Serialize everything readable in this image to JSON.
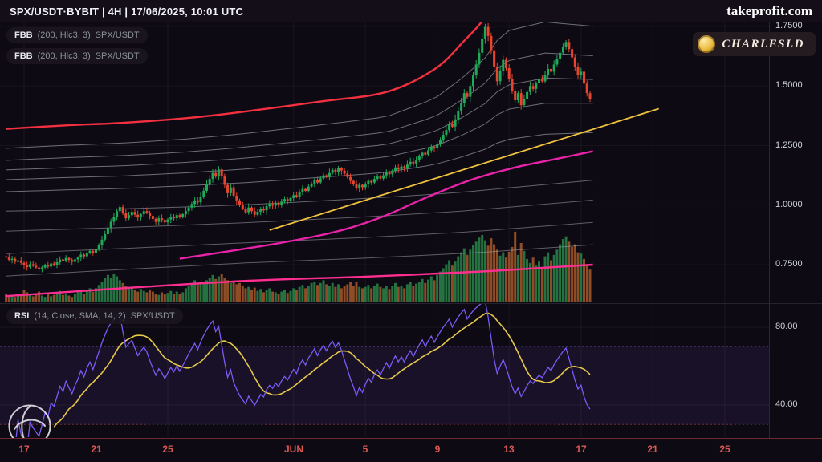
{
  "header": {
    "symbol_line": "SPX/USDT·BYBIT | 4H | 17/06/2025, 10:01 UTC",
    "brand": "takeprofit.com"
  },
  "badges": {
    "charlesld": "CHARLESLD"
  },
  "indicators": {
    "fbb": [
      {
        "name": "FBB",
        "params": "(200, Hlc3, 3)",
        "symbol": "SPX/USDT"
      },
      {
        "name": "FBB",
        "params": "(200, Hlc3, 3)",
        "symbol": "SPX/USDT"
      }
    ],
    "rsi": {
      "name": "RSI",
      "params": "(14, Close, SMA, 14, 2)",
      "symbol": "SPX/USDT"
    }
  },
  "price_axis": {
    "labels": [
      "1.7500",
      "1.5000",
      "1.2500",
      "1.0000",
      "0.7500"
    ],
    "values": [
      1.75,
      1.5,
      1.25,
      1.0,
      0.75
    ]
  },
  "rsi_axis": {
    "labels": [
      "80.00",
      "40.00"
    ],
    "values": [
      80,
      40
    ]
  },
  "time_axis": {
    "ticks": [
      {
        "label": "17",
        "i": 6
      },
      {
        "label": "21",
        "i": 30
      },
      {
        "label": "25",
        "i": 54
      },
      {
        "label": "JUN",
        "i": 96
      },
      {
        "label": "5",
        "i": 120
      },
      {
        "label": "9",
        "i": 144
      },
      {
        "label": "13",
        "i": 168
      },
      {
        "label": "17",
        "i": 192
      },
      {
        "label": "21",
        "i": 216
      },
      {
        "label": "25",
        "i": 240
      }
    ]
  },
  "chart_data": {
    "type": "candlestick",
    "symbol": "SPX/USDT",
    "exchange": "BYBIT",
    "interval": "4H",
    "timestamp": "17/06/2025, 10:01 UTC",
    "start_date": "2025-05-16",
    "candles_per_day": 6,
    "visible_price_range": [
      0.59,
      1.8
    ],
    "colors": {
      "up": "#1faa59",
      "down": "#e8442e",
      "vol_up": "rgba(46,150,82,0.75)",
      "vol_down": "rgba(186,100,46,0.75)"
    },
    "closes": [
      0.78,
      0.77,
      0.775,
      0.762,
      0.768,
      0.758,
      0.748,
      0.74,
      0.752,
      0.745,
      0.738,
      0.73,
      0.738,
      0.748,
      0.742,
      0.755,
      0.75,
      0.76,
      0.772,
      0.765,
      0.778,
      0.77,
      0.762,
      0.772,
      0.78,
      0.792,
      0.785,
      0.798,
      0.808,
      0.8,
      0.815,
      0.832,
      0.855,
      0.878,
      0.905,
      0.93,
      0.95,
      0.975,
      0.992,
      0.968,
      0.945,
      0.958,
      0.972,
      0.96,
      0.948,
      0.962,
      0.975,
      0.968,
      0.955,
      0.942,
      0.93,
      0.945,
      0.938,
      0.928,
      0.94,
      0.952,
      0.945,
      0.958,
      0.95,
      0.962,
      0.975,
      0.99,
      1.005,
      1.02,
      1.012,
      1.035,
      1.06,
      1.085,
      1.11,
      1.135,
      1.12,
      1.15,
      1.12,
      1.085,
      1.05,
      1.075,
      1.04,
      1.02,
      1.0,
      0.985,
      0.97,
      0.99,
      0.975,
      0.96,
      0.972,
      0.985,
      0.978,
      0.995,
      1.005,
      0.998,
      1.01,
      1.002,
      1.015,
      1.025,
      1.018,
      1.03,
      1.042,
      1.035,
      1.055,
      1.068,
      1.06,
      1.078,
      1.09,
      1.105,
      1.095,
      1.112,
      1.125,
      1.118,
      1.135,
      1.148,
      1.14,
      1.155,
      1.145,
      1.132,
      1.118,
      1.102,
      1.088,
      1.07,
      1.085,
      1.075,
      1.09,
      1.102,
      1.095,
      1.11,
      1.12,
      1.112,
      1.125,
      1.138,
      1.13,
      1.145,
      1.158,
      1.15,
      1.162,
      1.155,
      1.17,
      1.182,
      1.175,
      1.19,
      1.205,
      1.22,
      1.212,
      1.23,
      1.245,
      1.238,
      1.255,
      1.275,
      1.295,
      1.315,
      1.34,
      1.33,
      1.36,
      1.395,
      1.43,
      1.47,
      1.455,
      1.5,
      1.545,
      1.59,
      1.64,
      1.7,
      1.748,
      1.71,
      1.65,
      1.58,
      1.52,
      1.565,
      1.61,
      1.575,
      1.53,
      1.48,
      1.44,
      1.47,
      1.42,
      1.445,
      1.475,
      1.5,
      1.488,
      1.512,
      1.53,
      1.52,
      1.545,
      1.572,
      1.56,
      1.59,
      1.615,
      1.64,
      1.665,
      1.685,
      1.655,
      1.62,
      1.58,
      1.545,
      1.56,
      1.51,
      1.47,
      1.445
    ],
    "volumes": [
      1.2,
      0.8,
      1.0,
      0.7,
      0.9,
      1.1,
      1.8,
      1.4,
      1.0,
      0.8,
      1.2,
      1.5,
      0.9,
      0.7,
      1.1,
      0.8,
      1.0,
      1.3,
      1.6,
      1.0,
      1.2,
      0.9,
      0.7,
      1.1,
      1.4,
      1.8,
      1.2,
      1.6,
      2.0,
      1.5,
      2.0,
      2.5,
      3.0,
      3.5,
      4.0,
      3.6,
      4.2,
      3.8,
      3.2,
      2.8,
      2.4,
      2.2,
      2.2,
      1.8,
      1.5,
      1.9,
      1.6,
      1.4,
      1.8,
      1.5,
      1.2,
      1.0,
      1.4,
      1.1,
      1.3,
      1.6,
      1.2,
      1.5,
      1.1,
      1.4,
      2.0,
      2.4,
      2.8,
      3.2,
      2.6,
      3.0,
      2.8,
      3.2,
      3.6,
      4.0,
      3.4,
      3.8,
      4.2,
      3.6,
      3.2,
      2.8,
      3.0,
      2.6,
      2.8,
      2.4,
      2.0,
      2.2,
      1.8,
      2.1,
      1.6,
      1.9,
      1.4,
      1.7,
      2.0,
      1.5,
      1.4,
      1.2,
      1.5,
      1.8,
      1.3,
      1.6,
      2.0,
      1.7,
      2.2,
      2.5,
      2.0,
      2.4,
      2.8,
      3.0,
      2.5,
      2.8,
      3.2,
      2.6,
      2.4,
      2.8,
      2.2,
      2.6,
      2.0,
      2.3,
      2.6,
      2.9,
      2.4,
      3.0,
      2.2,
      2.0,
      2.2,
      2.5,
      2.0,
      2.4,
      2.7,
      2.2,
      2.0,
      2.3,
      1.9,
      2.4,
      2.8,
      2.2,
      2.4,
      2.0,
      2.6,
      2.9,
      2.3,
      2.7,
      3.0,
      3.4,
      2.8,
      3.3,
      3.8,
      3.2,
      4.0,
      4.5,
      5.0,
      5.6,
      6.2,
      5.4,
      6.0,
      6.8,
      7.4,
      8.0,
      7.0,
      7.8,
      8.5,
      9.0,
      9.6,
      10.0,
      9.2,
      8.4,
      9.5,
      8.6,
      7.8,
      6.9,
      7.4,
      6.6,
      7.5,
      8.2,
      10.5,
      7.0,
      8.8,
      7.6,
      6.4,
      5.8,
      6.6,
      5.4,
      6.0,
      5.2,
      6.8,
      7.4,
      6.2,
      7.0,
      7.8,
      8.6,
      9.4,
      9.8,
      9.0,
      8.2,
      8.6,
      7.4,
      7.2,
      6.4,
      5.6,
      4.8
    ],
    "overlays": {
      "upper_band": {
        "color": "#f2303f",
        "width": 2.4,
        "points": [
          [
            0,
            1.32
          ],
          [
            20,
            1.335
          ],
          [
            38,
            1.345
          ],
          [
            60,
            1.365
          ],
          [
            78,
            1.39
          ],
          [
            105,
            1.435
          ],
          [
            127,
            1.475
          ],
          [
            143,
            1.57
          ],
          [
            153,
            1.69
          ],
          [
            160,
            1.79
          ],
          [
            166,
            1.93
          ],
          [
            180,
            1.98
          ],
          [
            196,
            1.95
          ]
        ]
      },
      "lower_band": {
        "color": "#ff2f92",
        "width": 2.4,
        "points": [
          [
            0,
            0.618
          ],
          [
            40,
            0.652
          ],
          [
            80,
            0.682
          ],
          [
            120,
            0.7
          ],
          [
            160,
            0.722
          ],
          [
            196,
            0.75
          ]
        ]
      },
      "mid_band": {
        "color": "#e823a8",
        "width": 2.4,
        "points": [
          [
            58,
            0.775
          ],
          [
            90,
            0.838
          ],
          [
            110,
            0.888
          ],
          [
            125,
            0.948
          ],
          [
            140,
            1.03
          ],
          [
            155,
            1.105
          ],
          [
            170,
            1.158
          ],
          [
            183,
            1.192
          ],
          [
            196,
            1.226
          ]
        ]
      },
      "basis": {
        "color": "#9aa0ab",
        "width": 1,
        "points": [
          [
            0,
            0.975
          ],
          [
            40,
            0.985
          ],
          [
            80,
            1.002
          ],
          [
            120,
            1.028
          ],
          [
            150,
            1.052
          ],
          [
            170,
            1.075
          ],
          [
            196,
            1.105
          ]
        ]
      },
      "fib_ratios_upper": [
        0.236,
        0.382,
        0.5,
        0.618,
        0.764
      ],
      "fib_ratios_lower": [
        0.236,
        0.5,
        0.764
      ],
      "fib_color": "#aeb2bc",
      "trendline": {
        "color": "#f0c23e",
        "width": 1.8,
        "points": [
          [
            88,
            0.895
          ],
          [
            218,
            1.405
          ]
        ]
      }
    },
    "rsi": {
      "length": 14,
      "sma_length": 14,
      "band": [
        30,
        70
      ],
      "axis_levels": [
        80,
        40
      ],
      "line_color": "#7b5bf5",
      "sma_color": "#e6c84a",
      "band_fill": "rgba(120,90,230,0.10)"
    }
  }
}
